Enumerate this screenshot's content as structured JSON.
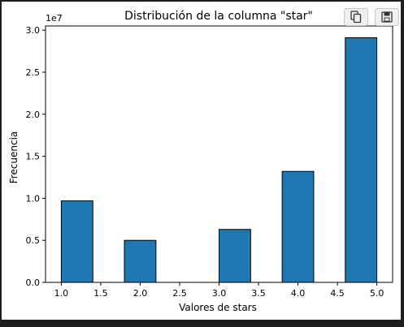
{
  "toolbar": {
    "copy_icon": "copy-icon",
    "save_icon": "floppy-disk-icon"
  },
  "chart_data": {
    "type": "bar",
    "title": "Distribución de la columna \"star\"",
    "xlabel": "Valores de stars",
    "ylabel": "Frecuencia",
    "offset_text": "1e7",
    "scale": 10000000,
    "xlim": [
      0.8,
      5.2
    ],
    "ylim": [
      0,
      3.05
    ],
    "xticks": [
      "1.0",
      "1.5",
      "2.0",
      "2.5",
      "3.0",
      "3.5",
      "4.0",
      "4.5",
      "5.0"
    ],
    "yticks": [
      "0.0",
      "0.5",
      "1.0",
      "1.5",
      "2.0",
      "2.5",
      "3.0"
    ],
    "bins": [
      {
        "x0": 1.0,
        "x1": 1.4,
        "value": 0.97
      },
      {
        "x0": 1.8,
        "x1": 2.2,
        "value": 0.5
      },
      {
        "x0": 3.0,
        "x1": 3.4,
        "value": 0.63
      },
      {
        "x0": 3.8,
        "x1": 4.2,
        "value": 1.32
      },
      {
        "x0": 4.6,
        "x1": 5.0,
        "value": 2.91
      }
    ],
    "bar_color": "#1f77b4",
    "edge_color": "#000000",
    "grid": false,
    "legend": "none"
  }
}
